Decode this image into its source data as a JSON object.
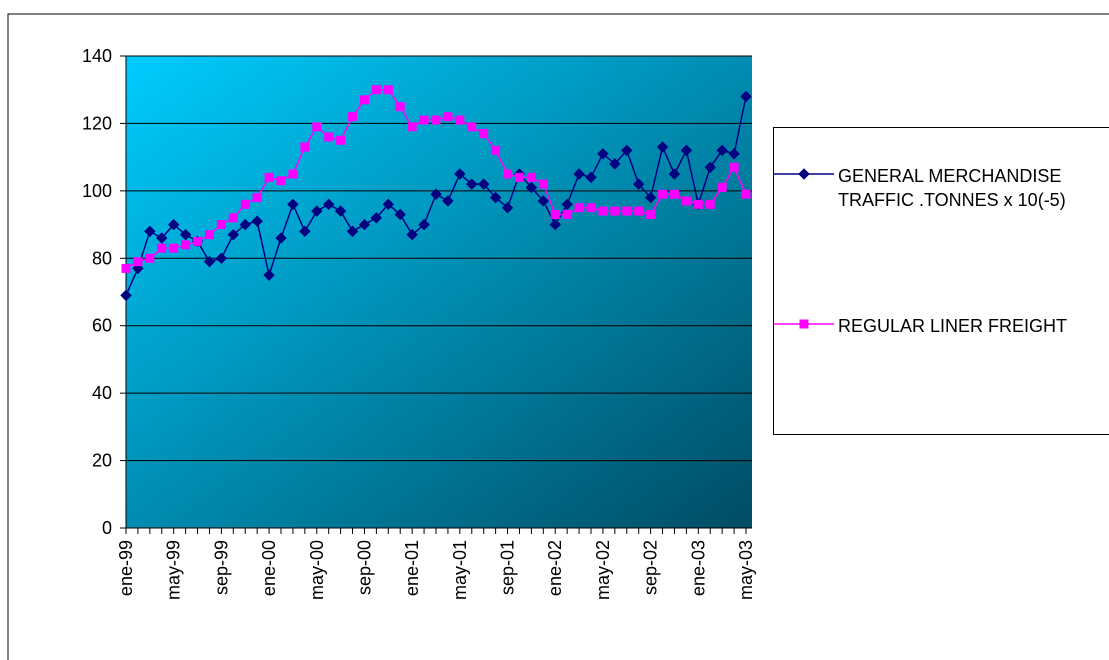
{
  "chart_data": {
    "type": "line",
    "categories": [
      "ene-99",
      null,
      null,
      null,
      "may-99",
      null,
      null,
      null,
      "sep-99",
      null,
      null,
      null,
      "ene-00",
      null,
      null,
      null,
      "may-00",
      null,
      null,
      null,
      "sep-00",
      null,
      null,
      null,
      "ene-01",
      null,
      null,
      null,
      "may-01",
      null,
      null,
      null,
      "sep-01",
      null,
      null,
      null,
      "ene-02",
      null,
      null,
      null,
      "may-02",
      null,
      null,
      null,
      "sep-02",
      null,
      null,
      null,
      "ene-03",
      null,
      null,
      null,
      "may-03"
    ],
    "series": [
      {
        "name": "GENERAL MERCHANDISE TRAFFIC .TONNES x 10(-5)",
        "color": "#000080",
        "marker": "diamond",
        "values": [
          69,
          77,
          88,
          86,
          90,
          87,
          85,
          79,
          80,
          87,
          90,
          91,
          75,
          86,
          96,
          88,
          94,
          96,
          94,
          88,
          90,
          92,
          96,
          93,
          87,
          90,
          99,
          97,
          105,
          102,
          102,
          98,
          95,
          105,
          101,
          97,
          90,
          96,
          105,
          104,
          111,
          108,
          112,
          102,
          98,
          113,
          105,
          112,
          96,
          107,
          112,
          111,
          128
        ]
      },
      {
        "name": "REGULAR LINER FREIGHT",
        "color": "#ff00ff",
        "marker": "square",
        "values": [
          77,
          79,
          80,
          83,
          83,
          84,
          85,
          87,
          90,
          92,
          96,
          98,
          104,
          103,
          105,
          113,
          119,
          116,
          115,
          122,
          127,
          130,
          130,
          125,
          119,
          121,
          121,
          122,
          121,
          119,
          117,
          112,
          105,
          104,
          104,
          102,
          93,
          93,
          95,
          95,
          94,
          94,
          94,
          94,
          93,
          99,
          99,
          97,
          96,
          96,
          101,
          107,
          99
        ]
      }
    ],
    "ylim": [
      0,
      140
    ],
    "yticks": [
      0,
      20,
      40,
      60,
      80,
      100,
      120,
      140
    ],
    "grid": true,
    "legend": "right"
  }
}
